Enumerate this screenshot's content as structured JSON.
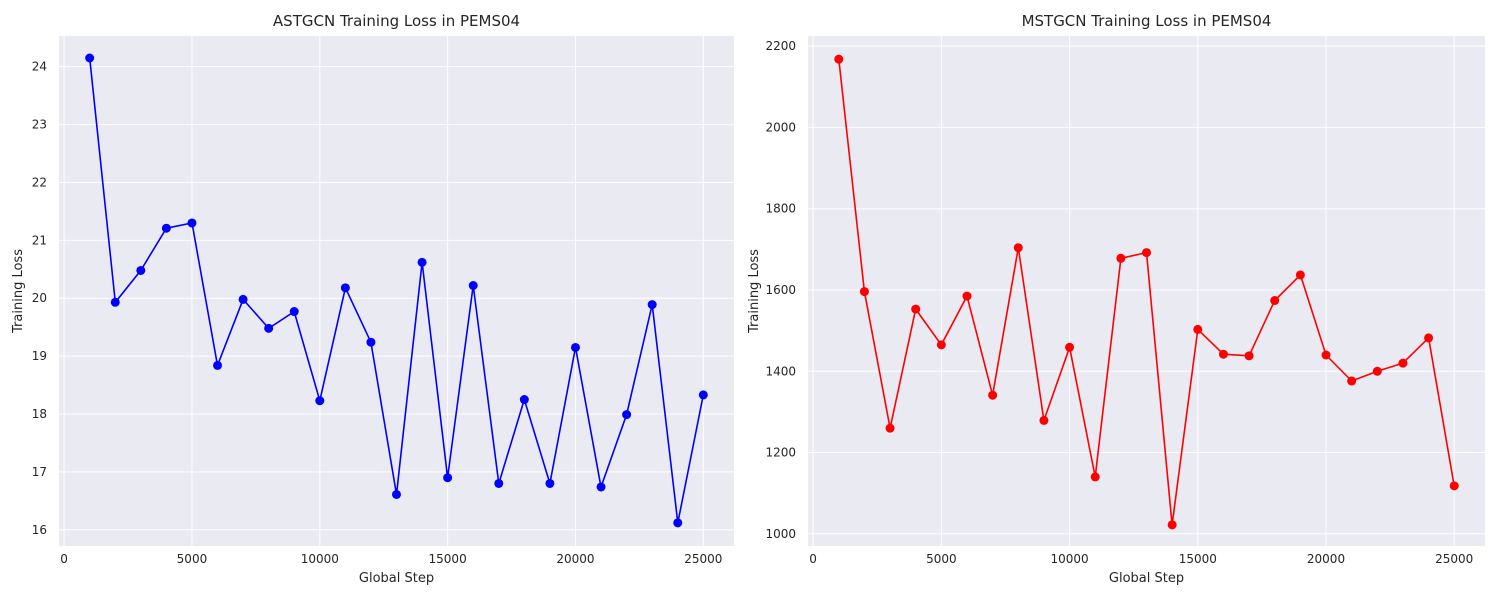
{
  "chart_data": [
    {
      "type": "line",
      "title": "ASTGCN Training Loss in PEMS04",
      "xlabel": "Global Step",
      "ylabel": "Training Loss",
      "xlim": [
        -200,
        26200
      ],
      "ylim": [
        15.72,
        24.53
      ],
      "xticks": [
        0,
        5000,
        10000,
        15000,
        20000,
        25000
      ],
      "yticks": [
        16,
        17,
        18,
        19,
        20,
        21,
        22,
        23,
        24
      ],
      "grid": true,
      "color": "#0000ff",
      "series": [
        {
          "x": [
            1000,
            2000,
            3000,
            4000,
            5000,
            6000,
            7000,
            8000,
            9000,
            10000,
            11000,
            12000,
            13000,
            14000,
            15000,
            16000,
            17000,
            18000,
            19000,
            20000,
            21000,
            22000,
            23000,
            24000,
            25000
          ],
          "values": [
            24.15,
            19.93,
            20.48,
            21.21,
            21.3,
            18.84,
            19.98,
            19.48,
            19.77,
            18.23,
            20.18,
            19.24,
            16.61,
            20.62,
            16.9,
            20.22,
            16.8,
            18.25,
            16.8,
            19.15,
            16.74,
            17.99,
            19.89,
            16.12,
            18.33
          ]
        }
      ]
    },
    {
      "type": "line",
      "title": "MSTGCN Training Loss in PEMS04",
      "xlabel": "Global Step",
      "ylabel": "Training Loss",
      "xlim": [
        -200,
        26200
      ],
      "ylim": [
        970,
        2225
      ],
      "xticks": [
        0,
        5000,
        10000,
        15000,
        20000,
        25000
      ],
      "yticks": [
        1000,
        1200,
        1400,
        1600,
        1800,
        2000,
        2200
      ],
      "grid": true,
      "color": "#ff0000",
      "series": [
        {
          "x": [
            1000,
            2000,
            3000,
            4000,
            5000,
            6000,
            7000,
            8000,
            9000,
            10000,
            11000,
            12000,
            13000,
            14000,
            15000,
            16000,
            17000,
            18000,
            19000,
            20000,
            21000,
            22000,
            23000,
            24000,
            25000
          ],
          "values": [
            2168,
            1596,
            1260,
            1553,
            1465,
            1585,
            1341,
            1704,
            1279,
            1459,
            1140,
            1678,
            1692,
            1022,
            1503,
            1442,
            1438,
            1574,
            1637,
            1440,
            1376,
            1400,
            1420,
            1482,
            1118
          ]
        }
      ]
    }
  ]
}
